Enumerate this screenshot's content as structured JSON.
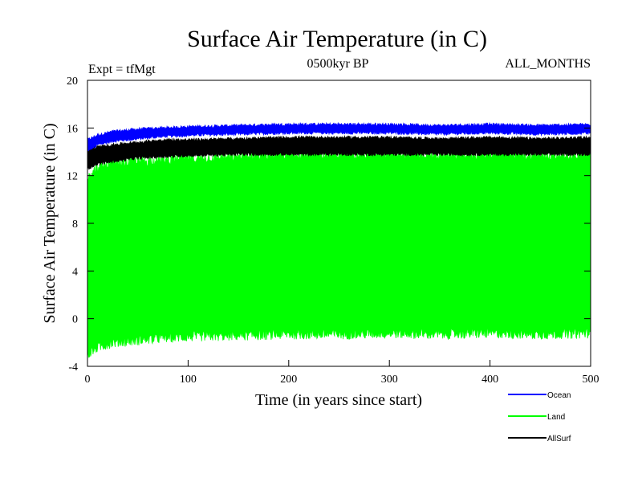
{
  "chart_data": {
    "type": "line",
    "title": "Surface Air Temperature (in C)",
    "subtitle_left": "Expt = tfMgt",
    "subtitle_center": "0500kyr BP",
    "subtitle_right": "ALL_MONTHS",
    "xlabel": "Time (in years since start)",
    "ylabel": "Surface Air Temperature (in C)",
    "xlim": [
      0,
      500
    ],
    "ylim": [
      -4,
      20
    ],
    "x_ticks": [
      0,
      100,
      200,
      300,
      400,
      500
    ],
    "y_ticks": [
      -4,
      0,
      4,
      8,
      12,
      16,
      20
    ],
    "legend_position": "bottom-right, outside plot",
    "grid": false,
    "series": [
      {
        "name": "Ocean",
        "color": "#0000ff",
        "x": [
          0,
          10,
          25,
          50,
          75,
          100,
          150,
          200,
          250,
          300,
          350,
          400,
          450,
          500
        ],
        "low": [
          13.8,
          14.6,
          14.9,
          15.1,
          15.3,
          15.4,
          15.5,
          15.6,
          15.6,
          15.6,
          15.5,
          15.6,
          15.5,
          15.6
        ],
        "high": [
          15.0,
          15.4,
          15.7,
          15.9,
          16.0,
          16.1,
          16.2,
          16.3,
          16.3,
          16.3,
          16.2,
          16.3,
          16.2,
          16.3
        ]
      },
      {
        "name": "Land",
        "color": "#00ff00",
        "x": [
          0,
          10,
          25,
          50,
          75,
          100,
          150,
          200,
          250,
          300,
          350,
          400,
          450,
          500
        ],
        "low": [
          -3.0,
          -2.4,
          -2.0,
          -1.8,
          -1.6,
          -1.5,
          -1.4,
          -1.3,
          -1.3,
          -1.2,
          -1.3,
          -1.2,
          -1.3,
          -1.2
        ],
        "high": [
          12.0,
          12.6,
          13.0,
          13.2,
          13.3,
          13.4,
          13.6,
          13.8,
          13.8,
          13.8,
          13.7,
          13.8,
          13.7,
          13.8
        ]
      },
      {
        "name": "AllSurf",
        "color": "#000000",
        "x": [
          0,
          10,
          25,
          50,
          75,
          100,
          150,
          200,
          250,
          300,
          350,
          400,
          450,
          500
        ],
        "low": [
          12.6,
          13.0,
          13.2,
          13.5,
          13.6,
          13.7,
          13.8,
          13.8,
          13.8,
          13.8,
          13.8,
          13.8,
          13.8,
          13.8
        ],
        "high": [
          14.0,
          14.4,
          14.6,
          14.8,
          15.0,
          15.0,
          15.1,
          15.2,
          15.2,
          15.2,
          15.1,
          15.2,
          15.1,
          15.2
        ]
      }
    ]
  }
}
